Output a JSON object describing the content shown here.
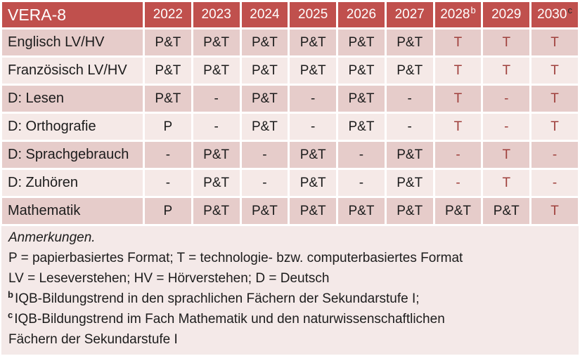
{
  "colors": {
    "header_bg": "#c0504d",
    "header_text": "#ffffff",
    "band_dark": "#e6ccca",
    "band_light": "#f5e9e7",
    "notes_bg": "#f4e9e8",
    "body_text": "#1c1c1c",
    "tech_text": "#9f403c",
    "grid": "#ffffff"
  },
  "table": {
    "title": "VERA-8",
    "columns": [
      {
        "label": "2022",
        "sup": ""
      },
      {
        "label": "2023",
        "sup": ""
      },
      {
        "label": "2024",
        "sup": ""
      },
      {
        "label": "2025",
        "sup": ""
      },
      {
        "label": "2026",
        "sup": ""
      },
      {
        "label": "2027",
        "sup": ""
      },
      {
        "label": "2028",
        "sup": "b"
      },
      {
        "label": "2029",
        "sup": ""
      },
      {
        "label": "2030",
        "sup": "c"
      }
    ],
    "rows": [
      {
        "label": "Englisch LV/HV",
        "values": [
          "P&T",
          "P&T",
          "P&T",
          "P&T",
          "P&T",
          "P&T",
          "T",
          "T",
          "T"
        ]
      },
      {
        "label": "Französisch LV/HV",
        "values": [
          "P&T",
          "P&T",
          "P&T",
          "P&T",
          "P&T",
          "P&T",
          "T",
          "T",
          "T"
        ]
      },
      {
        "label": "D: Lesen",
        "values": [
          "P&T",
          "-",
          "P&T",
          "-",
          "P&T",
          "-",
          "T",
          "-",
          "T"
        ]
      },
      {
        "label": "D: Orthografie",
        "values": [
          "P",
          "-",
          "P&T",
          "-",
          "P&T",
          "-",
          "T",
          "-",
          "T"
        ]
      },
      {
        "label": "D: Sprachgebrauch",
        "values": [
          "-",
          "P&T",
          "-",
          "P&T",
          "-",
          "P&T",
          "-",
          "T",
          "-"
        ]
      },
      {
        "label": "D: Zuhören",
        "values": [
          "-",
          "P&T",
          "-",
          "P&T",
          "-",
          "P&T",
          "-",
          "T",
          "-"
        ]
      },
      {
        "label": "Mathematik",
        "values": [
          "P",
          "P&T",
          "P&T",
          "P&T",
          "P&T",
          "P&T",
          "P&T",
          "P&T",
          "T"
        ]
      }
    ]
  },
  "notes": {
    "lines": [
      {
        "sup": "",
        "text": "Anmerkungen."
      },
      {
        "sup": "",
        "text": "P = papierbasiertes Format; T = technologie- bzw. computerbasiertes Format"
      },
      {
        "sup": "",
        "text": "LV = Leseverstehen; HV = Hörverstehen; D = Deutsch"
      },
      {
        "sup": "b",
        "text": "IQB-Bildungstrend in den sprachlichen Fächern der Sekundarstufe I;"
      },
      {
        "sup": "c",
        "text": "IQB-Bildungstrend im Fach Mathematik und den naturwissenschaftlichen"
      },
      {
        "sup": "",
        "text": "Fächern der Sekundarstufe I"
      }
    ]
  }
}
